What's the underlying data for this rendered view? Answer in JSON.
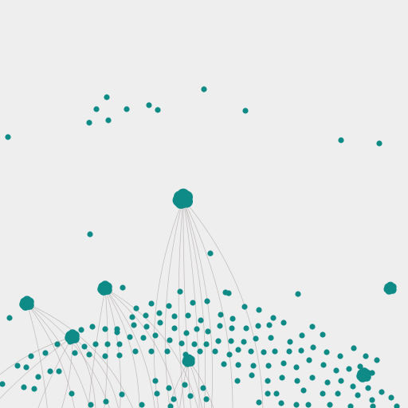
{
  "graph": {
    "colors": {
      "background": "#eeeeee",
      "node": "#0e8b87",
      "edge": "#9a9090"
    }
  }
}
